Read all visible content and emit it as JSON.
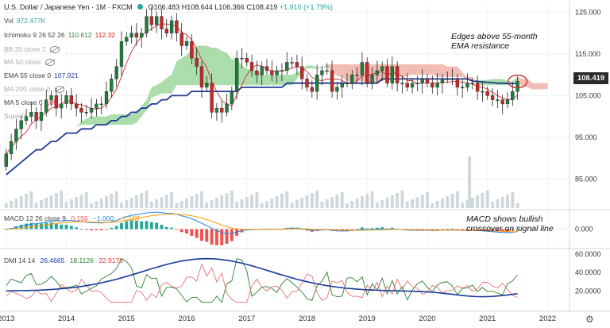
{
  "header": {
    "symbol": "U.S. Dollar / Japanese Yen",
    "interval": "1M",
    "source": "FXCM",
    "o_label": "O",
    "o_value": "106.483",
    "h_label": "H",
    "h_value": "108.644",
    "l_label": "L",
    "l_value": "106.366",
    "c_label": "C",
    "c_value": "108.419",
    "change": "+1.910 (+1.79%)"
  },
  "legend": {
    "vol": {
      "label": "Vol",
      "value": "972.477K"
    },
    "ichimoku": {
      "label": "Ichimoku 9 26 52 26",
      "v1": "110.612",
      "v2": "112.32"
    },
    "bb": {
      "label": "BB 20 close 2"
    },
    "ma50": {
      "label": "MA 50 close"
    },
    "ema55": {
      "label": "EMA 55 close 0",
      "value": "107.921"
    },
    "ma200": {
      "label": "MA 200 close 0"
    },
    "ma5": {
      "label": "MA 5 close 0",
      "value": "105"
    },
    "supertrend": {
      "label": "Supertr"
    }
  },
  "annotations": {
    "ema": [
      "Edges above 55-month",
      "EMA resistance"
    ],
    "macd": [
      "MACD shows bullish",
      "crossover on signal line"
    ]
  },
  "price_tag": "108.419",
  "macd_legend": {
    "label": "MACD 12 26 close 9",
    "hist": "0.158",
    "macd": "−1.000",
    "signal": "−1.158"
  },
  "dmi_legend": {
    "label": "DMI 14 14",
    "plus": "26.4665",
    "minus": "18.1126",
    "adx": "22.9176"
  },
  "axes": {
    "price_ticks": [
      {
        "v": 125,
        "label": "125.000"
      },
      {
        "v": 115,
        "label": "115.000"
      },
      {
        "v": 105,
        "label": "105.000"
      },
      {
        "v": 95,
        "label": "95.000"
      },
      {
        "v": 85,
        "label": "85.000"
      }
    ],
    "macd_ticks": [
      {
        "v": 0,
        "label": "0.000"
      }
    ],
    "dmi_ticks": [
      {
        "v": 60,
        "label": "60.0000"
      },
      {
        "v": 40,
        "label": "40.0000"
      },
      {
        "v": 20,
        "label": "20.0000"
      }
    ],
    "years": [
      {
        "v": 2013,
        "label": "2013"
      },
      {
        "v": 2014,
        "label": "2014"
      },
      {
        "v": 2015,
        "label": "2015"
      },
      {
        "v": 2016,
        "label": "2016"
      },
      {
        "v": 2017,
        "label": "2017"
      },
      {
        "v": 2018,
        "label": "2018"
      },
      {
        "v": 2019,
        "label": "2019"
      },
      {
        "v": 2020,
        "label": "2020"
      },
      {
        "v": 2021,
        "label": "2021"
      },
      {
        "v": 2022,
        "label": "2022"
      }
    ]
  },
  "colors": {
    "up": "#26a69a",
    "up_body": "#1e7d3c",
    "down": "#c62828",
    "cloud_bull": "#8fd18f",
    "cloud_bear": "#eea69c",
    "ema": "#1f3a93",
    "ma5": "#d32f2f",
    "macd": "#1e88e5",
    "signal": "#ff9800",
    "hist_pos": "#26a69a",
    "hist_neg": "#ef5350",
    "dmi_plus": "#2e7d32",
    "dmi_minus": "#e57373",
    "adx": "#1a3a9b",
    "volume": "#cfd8dc"
  },
  "chart_data": {
    "type": "candlestick",
    "interval": "monthly",
    "title": "U.S. Dollar / Japanese Yen",
    "price_range": [
      78,
      127
    ],
    "x_range": [
      2012.95,
      2022.35
    ],
    "candles_close": [
      91,
      94,
      97,
      99,
      100,
      101,
      99,
      101,
      104,
      105,
      102,
      103,
      105,
      103,
      102,
      101,
      101,
      102,
      103,
      103,
      106,
      109,
      112,
      118,
      119,
      120,
      119,
      120,
      124,
      122,
      124,
      121,
      120,
      123,
      120,
      117,
      118,
      114,
      112,
      107,
      108,
      101,
      102,
      101,
      103,
      106,
      114,
      114,
      113,
      111,
      110,
      112,
      111,
      110,
      111,
      111,
      113,
      113,
      112,
      109,
      107,
      106,
      110,
      111,
      111,
      106,
      107,
      108,
      108,
      110,
      110,
      113,
      108,
      110,
      111,
      112,
      108,
      112,
      108,
      108,
      107,
      108,
      108,
      109,
      108,
      107,
      108,
      109,
      109,
      109,
      107,
      107,
      108,
      108,
      106,
      106,
      105,
      104,
      104,
      103,
      104,
      106,
      108.419
    ],
    "ema55": [
      86,
      87,
      88,
      89,
      90,
      91,
      92,
      92,
      93,
      94,
      94,
      95,
      96,
      96,
      96,
      97,
      97,
      97,
      98,
      98,
      98,
      99,
      99,
      100,
      100,
      101,
      101,
      102,
      102,
      103,
      103,
      104,
      104,
      105,
      105,
      105,
      105,
      106,
      106,
      106,
      106,
      106,
      106,
      106,
      106,
      106,
      106,
      107,
      107,
      107,
      107,
      107,
      107,
      107,
      107,
      107,
      108,
      108,
      108,
      108,
      108,
      108,
      108,
      108,
      108,
      108,
      108,
      108,
      108,
      108,
      108,
      108,
      108,
      108,
      108,
      109,
      109,
      109,
      109,
      109,
      109,
      109,
      109,
      109,
      109,
      109,
      109,
      109,
      109,
      109,
      109,
      109,
      109,
      108.5,
      108.4,
      108.3,
      108.2,
      108.1,
      108,
      108,
      107.9,
      107.9,
      107.921
    ],
    "macd_series": [
      {
        "name": "MACD"
      },
      {
        "name": "Signal"
      },
      {
        "name": "Histogram"
      }
    ],
    "dmi_series": [
      {
        "name": "+DI"
      },
      {
        "name": "-DI"
      },
      {
        "name": "ADX"
      }
    ],
    "macd_ylim": [
      -4,
      4
    ],
    "dmi_ylim": [
      0,
      65
    ],
    "dmi_last": {
      "plus_di": 26.4665,
      "minus_di": 18.1126,
      "adx": 22.9176
    }
  }
}
